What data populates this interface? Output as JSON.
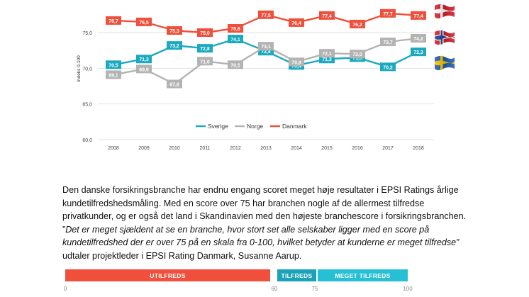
{
  "chart_data": {
    "type": "line",
    "ylabel": "Indeks 0-100",
    "ylim": [
      60,
      78.5
    ],
    "yticks": [
      "60,0",
      "65,0",
      "70,0",
      "75,0"
    ],
    "grid": true,
    "legend_position": "bottom-center",
    "categories": [
      "2008",
      "2009",
      "2010",
      "2011",
      "2012",
      "2013",
      "2014",
      "2015",
      "2016",
      "2017",
      "2018"
    ],
    "series": [
      {
        "name": "Sverige",
        "color": "#1aa9bf",
        "values": [
          70.5,
          71.3,
          73.2,
          72.8,
          74.1,
          72.4,
          70.4,
          71.3,
          71.5,
          70.2,
          72.3
        ],
        "labels": [
          "70,5",
          "71,3",
          "73,2",
          "72,8",
          "74,1",
          "72,4",
          "70,4",
          "71,3",
          "71,5",
          "70,2",
          "72,3"
        ]
      },
      {
        "name": "Norge",
        "color": "#b3b3b3",
        "values": [
          69.1,
          69.9,
          67.8,
          71.0,
          70.5,
          73.1,
          70.9,
          72.1,
          72.0,
          73.7,
          74.2
        ],
        "labels": [
          "69,1",
          "69,9",
          "67,8",
          "71,0",
          "70,5",
          "73,1",
          "70,9",
          "72,1",
          "72,0",
          "73,7",
          "74,2"
        ]
      },
      {
        "name": "Danmark",
        "color": "#f04f3b",
        "values": [
          76.7,
          76.5,
          75.3,
          75.0,
          75.6,
          77.5,
          76.4,
          77.4,
          76.2,
          77.7,
          77.4
        ],
        "labels": [
          "76,7",
          "76,5",
          "75,3",
          "75,0",
          "75,6",
          "77,5",
          "76,4",
          "77,4",
          "76,2",
          "77,7",
          "77,4"
        ]
      }
    ]
  },
  "flags": [
    {
      "country": "Danmark",
      "icon": "danish-flag-icon"
    },
    {
      "country": "Norge",
      "icon": "norwegian-flag-icon"
    },
    {
      "country": "Sverige",
      "icon": "swedish-flag-icon"
    }
  ],
  "paragraph": {
    "part1": "Den danske forsikringsbranche har endnu engang scoret meget høje resultater i EPSI Ratings årlige kundetilfredshedsmåling. Med en score over 75 har branchen nogle af de allermest tilfredse privatkunder, og er også det land i Skandinavien med den højeste branchescore i forsikringsbranchen. ”",
    "quote": "Det er meget sjældent at se en branche, hvor stort set alle selskaber ligger med en score på kundetilfredshed der er over 75 på en skala fra 0-100, hvilket betyder at kunderne er meget tilfredse”",
    "part2": " udtaler projektleder i EPSI Rating Danmark, Susanne Aarup."
  },
  "scale": {
    "segments": [
      {
        "label": "UTILFREDS",
        "from": 0,
        "to": 60,
        "color": "#f04f3b"
      },
      {
        "label": "TILFREDS",
        "from": 60,
        "to": 75,
        "color": "#1aa3b8"
      },
      {
        "label": "MEGET TILFREDS",
        "from": 75,
        "to": 100,
        "color": "#25c0d6"
      }
    ],
    "ticks": [
      "0",
      "60",
      "75",
      "100"
    ]
  }
}
